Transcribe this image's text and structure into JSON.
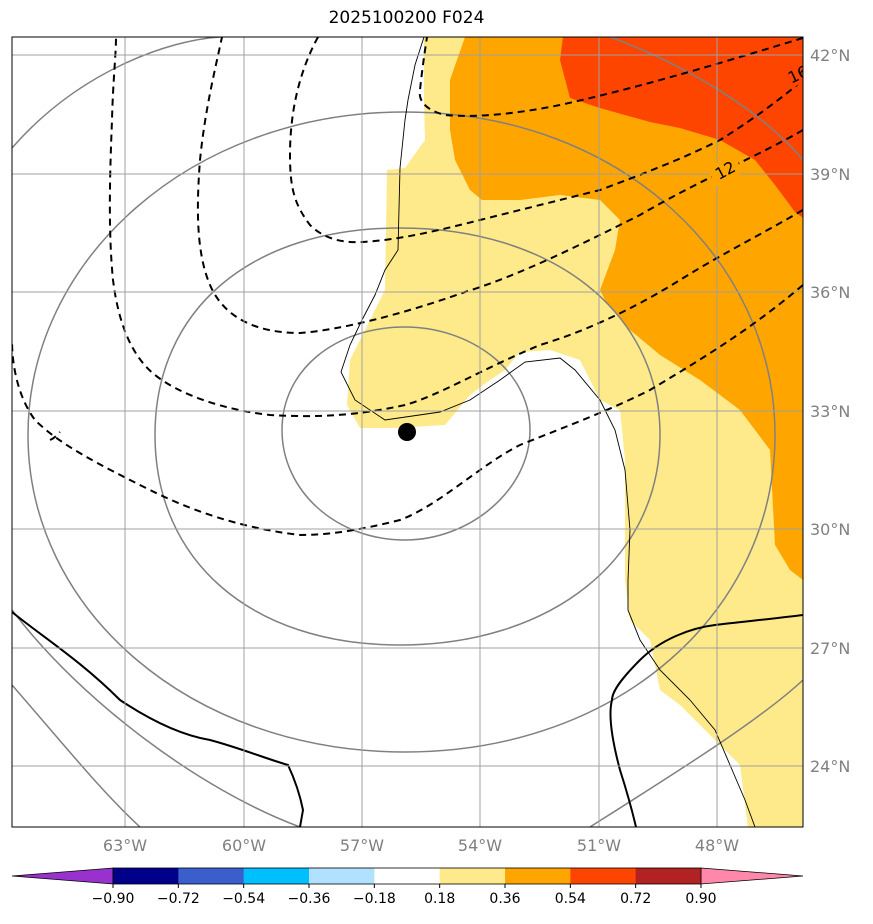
{
  "title": "2025100200 F024",
  "map": {
    "lon_ticks": [
      "63°W",
      "60°W",
      "57°W",
      "54°W",
      "51°W",
      "48°W"
    ],
    "lat_ticks": [
      "42°N",
      "39°N",
      "36°N",
      "33°N",
      "30°N",
      "27°N",
      "24°N"
    ],
    "contour_labels": [
      "12",
      "16"
    ],
    "fill_colors": {
      "light_yellow": "#feea8a",
      "orange": "#fea500",
      "red_orange": "#fe4500"
    },
    "marker": "storm-center-dot"
  },
  "colorbar": {
    "colors": [
      "#9932cc",
      "#00008b",
      "#3a5fcd",
      "#00bfff",
      "#b0e2ff",
      "#ffffff",
      "#feea8a",
      "#fea500",
      "#fe4500",
      "#b22222",
      "#ff88aa"
    ],
    "ticks": [
      "−0.90",
      "−0.72",
      "−0.54",
      "−0.36",
      "−0.18",
      "0.18",
      "0.36",
      "0.54",
      "0.72",
      "0.90"
    ]
  }
}
